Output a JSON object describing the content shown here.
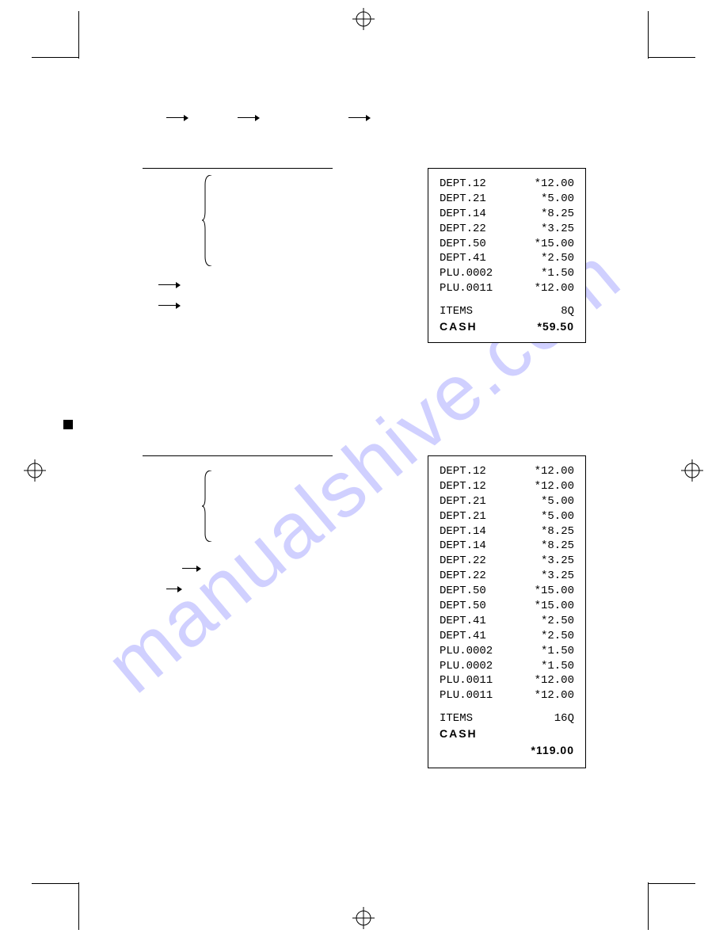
{
  "receipt1": {
    "lines": [
      {
        "label": "DEPT.12",
        "val": "*12.00"
      },
      {
        "label": "DEPT.21",
        "val": "*5.00"
      },
      {
        "label": "DEPT.14",
        "val": "*8.25"
      },
      {
        "label": "DEPT.22",
        "val": "*3.25"
      },
      {
        "label": "DEPT.50",
        "val": "*15.00"
      },
      {
        "label": "DEPT.41",
        "val": "*2.50"
      },
      {
        "label": "PLU.0002",
        "val": "*1.50"
      },
      {
        "label": "PLU.0011",
        "val": "*12.00"
      }
    ],
    "items_label": "ITEMS",
    "items_qty": "8Q",
    "cash_label": "CASH",
    "cash_val": "*59.50"
  },
  "receipt2": {
    "lines": [
      {
        "label": "DEPT.12",
        "val": "*12.00"
      },
      {
        "label": "DEPT.12",
        "val": "*12.00"
      },
      {
        "label": "DEPT.21",
        "val": "*5.00"
      },
      {
        "label": "DEPT.21",
        "val": "*5.00"
      },
      {
        "label": "DEPT.14",
        "val": "*8.25"
      },
      {
        "label": "DEPT.14",
        "val": "*8.25"
      },
      {
        "label": "DEPT.22",
        "val": "*3.25"
      },
      {
        "label": "DEPT.22",
        "val": "*3.25"
      },
      {
        "label": "DEPT.50",
        "val": "*15.00"
      },
      {
        "label": "DEPT.50",
        "val": "*15.00"
      },
      {
        "label": "DEPT.41",
        "val": "*2.50"
      },
      {
        "label": "DEPT.41",
        "val": "*2.50"
      },
      {
        "label": "PLU.0002",
        "val": "*1.50"
      },
      {
        "label": "PLU.0002",
        "val": "*1.50"
      },
      {
        "label": "PLU.0011",
        "val": "*12.00"
      },
      {
        "label": "PLU.0011",
        "val": "*12.00"
      }
    ],
    "items_label": "ITEMS",
    "items_qty": "16Q",
    "cash_label": "CASH",
    "cash_val": "*119.00"
  },
  "colors": {
    "line": "#000000",
    "bg": "#ffffff",
    "watermark": "rgba(120,120,255,0.35)"
  },
  "watermark_text": "manualshive.com"
}
